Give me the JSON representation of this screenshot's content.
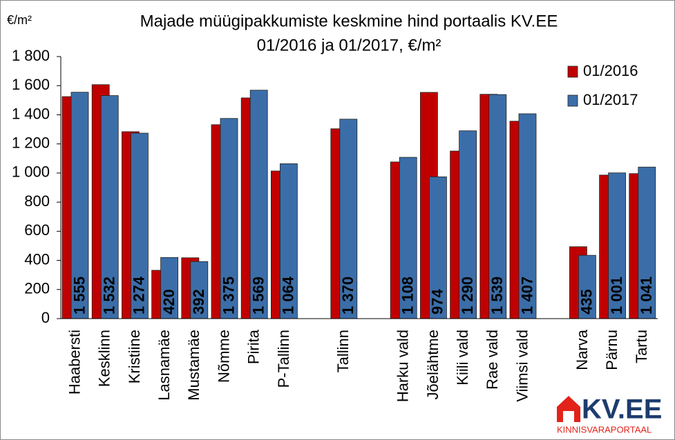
{
  "chart_data": {
    "type": "bar",
    "title": "Majade müügipakkumiste keskmine hind portaalis KV.EE",
    "subtitle": "01/2016 ja 01/2017, €/m²",
    "y_axis_label": "€/m²",
    "categories": [
      "Haabersti",
      "Kesklinn",
      "Kristiine",
      "Lasnamäe",
      "Mustamäe",
      "Nõmme",
      "Pirita",
      "P-Tallinn",
      null,
      "Tallinn",
      null,
      "Harku vald",
      "Jõelähtme",
      "Kiili vald",
      "Rae vald",
      "Viimsi vald",
      null,
      "Narva",
      "Pärnu",
      "Tartu"
    ],
    "series": [
      {
        "name": "01/2016",
        "color": "#c00000",
        "values": [
          1525,
          1607,
          1284,
          332,
          418,
          1332,
          1516,
          1014,
          null,
          1304,
          null,
          1076,
          1554,
          1151,
          1541,
          1356,
          null,
          494,
          986,
          996
        ]
      },
      {
        "name": "01/2017",
        "color": "#3b6ea8",
        "values": [
          1555,
          1532,
          1274,
          420,
          392,
          1375,
          1569,
          1064,
          null,
          1370,
          null,
          1108,
          974,
          1290,
          1539,
          1407,
          null,
          435,
          1001,
          1041
        ],
        "value_labels": [
          "1 555",
          "1 532",
          "1 274",
          "420",
          "392",
          "1 375",
          "1 569",
          "1 064",
          null,
          "1 370",
          null,
          "1 108",
          "974",
          "1 290",
          "1 539",
          "1 407",
          null,
          "435",
          "1 001",
          "1 041"
        ]
      }
    ],
    "ylim": [
      0,
      1800
    ],
    "yticks": [
      0,
      200,
      400,
      600,
      800,
      {
        "value": 1000,
        "label": "1 000"
      },
      {
        "value": 1200,
        "label": "1 200"
      },
      {
        "value": 1400,
        "label": "1 400"
      },
      {
        "value": 1600,
        "label": "1 600"
      },
      {
        "value": 1800,
        "label": "1 800"
      }
    ],
    "grid": false,
    "legend": "top-right"
  },
  "logo": {
    "name": "KV.EE",
    "tagline": "KINNISVARAPORTAAL"
  }
}
